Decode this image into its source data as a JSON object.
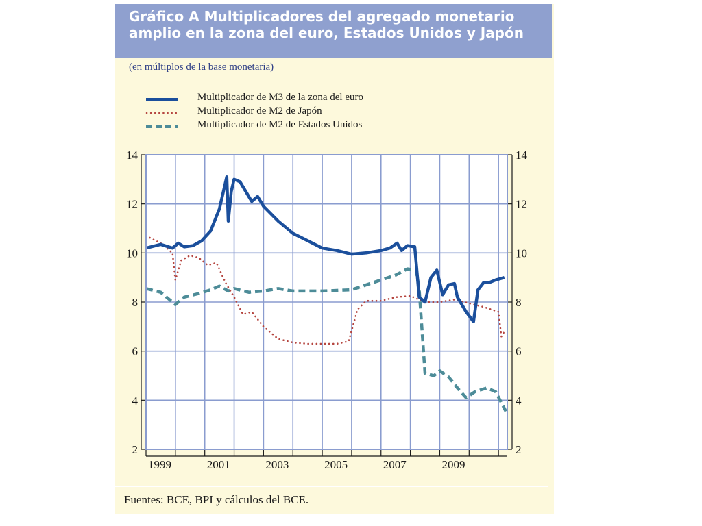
{
  "title": "Gráfico A Multiplicadores del agregado monetario amplio en la zona del euro, Estados Unidos y Japón",
  "subtitle": "(en múltiplos de la base monetaria)",
  "source": "Fuentes: BCE, BPI y cálculos del BCE.",
  "colors": {
    "euro": "#1b4f9c",
    "japan": "#b5453f",
    "us": "#4d8c98",
    "grid": "#8a9ccf",
    "plot_bg": "#ffffff",
    "frame_bg": "#fdf9dc",
    "title_bg": "#8fa0cf"
  },
  "chart_data": {
    "type": "line",
    "title": "Gráfico A Multiplicadores del agregado monetario amplio en la zona del euro, Estados Unidos y Japón",
    "ylabel": "(en múltiplos de la base monetaria)",
    "xlabel": "",
    "xlim": [
      1999,
      2011.3
    ],
    "ylim": [
      2,
      14
    ],
    "x_ticks": [
      "1999",
      "2001",
      "2003",
      "2005",
      "2007",
      "2009"
    ],
    "y_ticks": [
      "2",
      "4",
      "6",
      "8",
      "10",
      "12",
      "14"
    ],
    "grid": true,
    "legend_position": "top",
    "series": [
      {
        "name": "Multiplicador de M3 de la zona del euro",
        "style": "solid",
        "points": [
          [
            1999.0,
            10.2
          ],
          [
            1999.5,
            10.35
          ],
          [
            1999.9,
            10.2
          ],
          [
            2000.1,
            10.4
          ],
          [
            2000.3,
            10.25
          ],
          [
            2000.6,
            10.3
          ],
          [
            2000.9,
            10.5
          ],
          [
            2001.2,
            10.9
          ],
          [
            2001.5,
            11.8
          ],
          [
            2001.75,
            13.1
          ],
          [
            2001.8,
            11.3
          ],
          [
            2001.9,
            12.5
          ],
          [
            2002.0,
            13.0
          ],
          [
            2002.2,
            12.9
          ],
          [
            2002.4,
            12.5
          ],
          [
            2002.6,
            12.1
          ],
          [
            2002.8,
            12.3
          ],
          [
            2003.0,
            11.9
          ],
          [
            2003.5,
            11.3
          ],
          [
            2004.0,
            10.8
          ],
          [
            2004.5,
            10.5
          ],
          [
            2005.0,
            10.2
          ],
          [
            2005.5,
            10.1
          ],
          [
            2006.0,
            9.95
          ],
          [
            2006.5,
            10.0
          ],
          [
            2007.0,
            10.1
          ],
          [
            2007.3,
            10.2
          ],
          [
            2007.55,
            10.4
          ],
          [
            2007.7,
            10.1
          ],
          [
            2007.9,
            10.3
          ],
          [
            2008.15,
            10.25
          ],
          [
            2008.3,
            8.2
          ],
          [
            2008.5,
            8.0
          ],
          [
            2008.7,
            9.0
          ],
          [
            2008.9,
            9.3
          ],
          [
            2009.1,
            8.3
          ],
          [
            2009.3,
            8.7
          ],
          [
            2009.5,
            8.75
          ],
          [
            2009.6,
            8.2
          ],
          [
            2009.9,
            7.6
          ],
          [
            2010.15,
            7.2
          ],
          [
            2010.3,
            8.5
          ],
          [
            2010.5,
            8.8
          ],
          [
            2010.7,
            8.8
          ],
          [
            2010.9,
            8.9
          ],
          [
            2011.2,
            9.0
          ]
        ]
      },
      {
        "name": "Multiplicador de M2 de Japón",
        "style": "dotted",
        "points": [
          [
            1999.0,
            10.7
          ],
          [
            1999.5,
            10.4
          ],
          [
            1999.9,
            10.0
          ],
          [
            2000.0,
            8.9
          ],
          [
            2000.2,
            9.7
          ],
          [
            2000.5,
            9.9
          ],
          [
            2000.8,
            9.8
          ],
          [
            2001.1,
            9.5
          ],
          [
            2001.4,
            9.6
          ],
          [
            2001.7,
            8.8
          ],
          [
            2002.0,
            8.2
          ],
          [
            2002.3,
            7.5
          ],
          [
            2002.6,
            7.6
          ],
          [
            2003.0,
            7.0
          ],
          [
            2003.5,
            6.5
          ],
          [
            2004.0,
            6.35
          ],
          [
            2004.5,
            6.3
          ],
          [
            2005.0,
            6.3
          ],
          [
            2005.5,
            6.3
          ],
          [
            2005.9,
            6.4
          ],
          [
            2006.2,
            7.7
          ],
          [
            2006.5,
            8.05
          ],
          [
            2007.0,
            8.05
          ],
          [
            2007.5,
            8.2
          ],
          [
            2008.0,
            8.25
          ],
          [
            2008.5,
            8.0
          ],
          [
            2009.0,
            8.0
          ],
          [
            2009.5,
            8.1
          ],
          [
            2010.0,
            7.95
          ],
          [
            2010.5,
            7.8
          ],
          [
            2011.0,
            7.6
          ],
          [
            2011.1,
            6.6
          ],
          [
            2011.2,
            6.8
          ]
        ]
      },
      {
        "name": "Multiplicador de M2 de Estados Unidos",
        "style": "dashed",
        "points": [
          [
            1999.0,
            8.55
          ],
          [
            1999.5,
            8.4
          ],
          [
            2000.0,
            7.9
          ],
          [
            2000.3,
            8.2
          ],
          [
            2000.8,
            8.35
          ],
          [
            2001.2,
            8.5
          ],
          [
            2001.5,
            8.65
          ],
          [
            2001.8,
            8.45
          ],
          [
            2002.0,
            8.55
          ],
          [
            2002.5,
            8.4
          ],
          [
            2003.0,
            8.45
          ],
          [
            2003.5,
            8.55
          ],
          [
            2004.0,
            8.45
          ],
          [
            2005.0,
            8.45
          ],
          [
            2006.0,
            8.5
          ],
          [
            2006.5,
            8.7
          ],
          [
            2007.0,
            8.9
          ],
          [
            2007.5,
            9.1
          ],
          [
            2007.9,
            9.35
          ],
          [
            2008.2,
            9.3
          ],
          [
            2008.3,
            8.5
          ],
          [
            2008.5,
            5.1
          ],
          [
            2008.8,
            5.0
          ],
          [
            2009.0,
            5.2
          ],
          [
            2009.3,
            4.95
          ],
          [
            2009.6,
            4.5
          ],
          [
            2009.9,
            4.1
          ],
          [
            2010.2,
            4.35
          ],
          [
            2010.6,
            4.5
          ],
          [
            2010.9,
            4.35
          ],
          [
            2011.1,
            3.9
          ],
          [
            2011.25,
            3.55
          ]
        ]
      }
    ]
  }
}
